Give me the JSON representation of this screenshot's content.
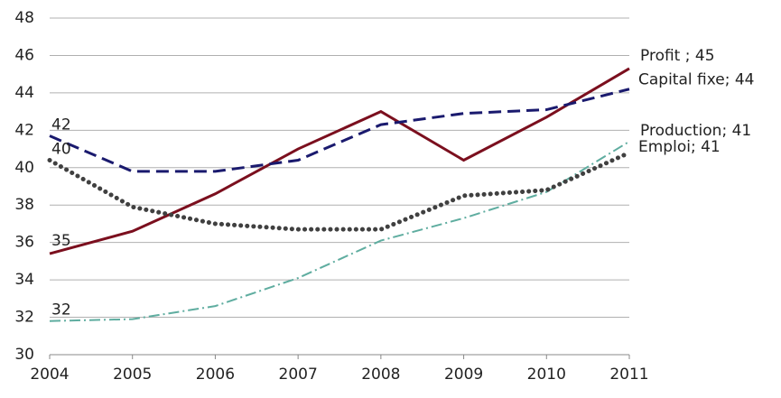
{
  "chart_data": {
    "type": "line",
    "x": [
      2004,
      2005,
      2006,
      2007,
      2008,
      2009,
      2010,
      2011
    ],
    "xlim": [
      2004,
      2011
    ],
    "xticks": [
      2004,
      2005,
      2006,
      2007,
      2008,
      2009,
      2010,
      2011
    ],
    "ylim": [
      30,
      48
    ],
    "yticks": [
      30,
      32,
      34,
      36,
      38,
      40,
      42,
      44,
      46,
      48
    ],
    "grid": true,
    "series": [
      {
        "name": "Profit",
        "color": "#7b0f1e",
        "style": "solid",
        "values": [
          35.4,
          36.6,
          38.6,
          41.0,
          43.0,
          40.4,
          42.7,
          45.3
        ],
        "value_labels": [
          "35",
          null,
          null,
          null,
          null,
          null,
          null,
          "Profit ; 45"
        ]
      },
      {
        "name": "Capital fixe",
        "color": "#1a1a6e",
        "style": "dashed",
        "values": [
          41.7,
          39.8,
          39.8,
          40.4,
          42.3,
          42.9,
          43.1,
          44.2
        ],
        "value_labels": [
          "42",
          null,
          null,
          null,
          null,
          null,
          null,
          "Capital fixe; 44"
        ]
      },
      {
        "name": "Production",
        "color": "#5fada0",
        "style": "dashdot",
        "values": [
          31.8,
          31.9,
          32.6,
          34.1,
          36.1,
          37.3,
          38.7,
          41.4
        ],
        "value_labels": [
          "32",
          null,
          null,
          null,
          null,
          null,
          null,
          "Production; 41"
        ]
      },
      {
        "name": "Emploi",
        "color": "#404040",
        "style": "dotted",
        "values": [
          40.4,
          37.9,
          37.0,
          36.7,
          36.7,
          38.5,
          38.8,
          40.8
        ],
        "value_labels": [
          "40",
          null,
          null,
          null,
          null,
          null,
          null,
          "Emploi; 41"
        ]
      }
    ]
  }
}
